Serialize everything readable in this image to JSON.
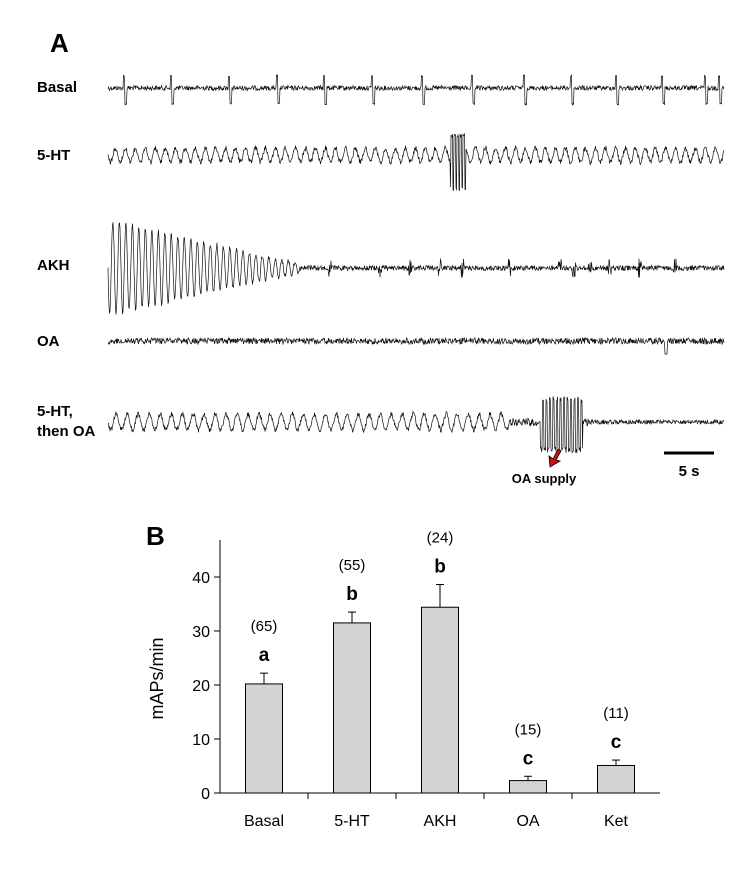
{
  "panel_a": {
    "letter": "A",
    "traces": [
      {
        "label_lines": [
          "Basal"
        ],
        "kind": "basal"
      },
      {
        "label_lines": [
          "5-HT"
        ],
        "kind": "serotonin"
      },
      {
        "label_lines": [
          "AKH"
        ],
        "kind": "akh"
      },
      {
        "label_lines": [
          "OA"
        ],
        "kind": "oa"
      },
      {
        "label_lines": [
          "5-HT,",
          "then OA"
        ],
        "kind": "serotonin-then-oa"
      }
    ],
    "annotation": "OA supply",
    "scale_bar_label": "5 s",
    "arrow_color": "#cc1111"
  },
  "chart_data": {
    "type": "bar",
    "panel_letter": "B",
    "categories": [
      "Basal",
      "5-HT",
      "AKH",
      "OA",
      "Ket"
    ],
    "values": [
      20.2,
      31.5,
      34.4,
      2.3,
      5.1
    ],
    "errors": [
      2.0,
      2.0,
      4.2,
      0.8,
      1.0
    ],
    "n_labels": [
      "(65)",
      "(55)",
      "(24)",
      "(15)",
      "(11)"
    ],
    "sig_labels": [
      "a",
      "b",
      "b",
      "c",
      "c"
    ],
    "ylabel": "mAPs/min",
    "ylim": [
      0,
      45
    ],
    "yticks": [
      0,
      10,
      20,
      30,
      40
    ],
    "bar_color": "#d3d3d3"
  }
}
